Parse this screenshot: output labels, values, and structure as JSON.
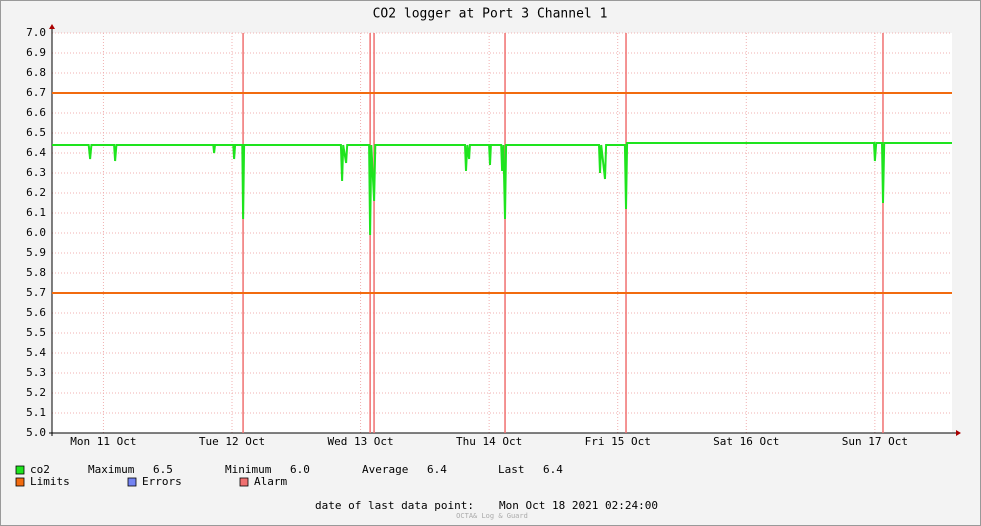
{
  "chart_data": {
    "type": "line",
    "title": "CO2 logger at Port 3 Channel 1",
    "x": [
      "2021-10-11T02:24",
      "2021-10-11T09:15",
      "2021-10-11T09:31",
      "2021-10-11T09:45",
      "2021-10-11T14:00",
      "2021-10-11T14:11",
      "2021-10-11T14:25",
      "2021-10-11T20:00",
      "2021-10-12T02:00",
      "2021-10-12T08:30",
      "2021-10-12T08:40",
      "2021-10-12T08:50",
      "2021-10-12T12:15",
      "2021-10-12T12:24",
      "2021-10-12T12:35",
      "2021-10-12T13:55",
      "2021-10-12T14:04",
      "2021-10-12T14:15",
      "2021-10-12T20:00",
      "2021-10-13T02:00",
      "2021-10-13T08:20",
      "2021-10-13T08:33",
      "2021-10-13T08:45",
      "2021-10-13T09:18",
      "2021-10-13T09:30",
      "2021-10-13T13:35",
      "2021-10-13T13:47",
      "2021-10-13T14:00",
      "2021-10-13T14:31",
      "2021-10-13T14:45",
      "2021-10-13T20:00",
      "2021-10-14T02:00",
      "2021-10-14T07:30",
      "2021-10-14T07:41",
      "2021-10-14T07:55",
      "2021-10-14T08:15",
      "2021-10-14T08:25",
      "2021-10-14T12:00",
      "2021-10-14T12:10",
      "2021-10-14T12:20",
      "2021-10-14T14:15",
      "2021-10-14T14:25",
      "2021-10-14T14:40",
      "2021-10-14T14:58",
      "2021-10-14T15:10",
      "2021-10-14T20:00",
      "2021-10-15T02:00",
      "2021-10-15T08:30",
      "2021-10-15T08:42",
      "2021-10-15T08:55",
      "2021-10-15T09:38",
      "2021-10-15T09:50",
      "2021-10-15T13:20",
      "2021-10-15T13:33",
      "2021-10-15T13:45",
      "2021-10-15T20:00",
      "2021-10-16T06:00",
      "2021-10-16T18:00",
      "2021-10-17T06:00",
      "2021-10-17T11:50",
      "2021-10-17T12:01",
      "2021-10-17T12:15",
      "2021-10-17T13:20",
      "2021-10-17T13:31",
      "2021-10-17T13:45",
      "2021-10-17T20:00",
      "2021-10-18T02:24"
    ],
    "series": [
      {
        "name": "co2",
        "color": "#1ee41e",
        "values": [
          6.44,
          6.44,
          6.37,
          6.44,
          6.44,
          6.36,
          6.44,
          6.44,
          6.44,
          6.44,
          6.4,
          6.44,
          6.44,
          6.37,
          6.44,
          6.44,
          6.07,
          6.44,
          6.44,
          6.44,
          6.44,
          6.26,
          6.44,
          6.35,
          6.44,
          6.44,
          5.99,
          6.44,
          6.16,
          6.44,
          6.44,
          6.44,
          6.44,
          6.31,
          6.44,
          6.37,
          6.44,
          6.44,
          6.34,
          6.44,
          6.44,
          6.31,
          6.44,
          6.07,
          6.44,
          6.44,
          6.44,
          6.44,
          6.3,
          6.44,
          6.27,
          6.44,
          6.44,
          6.12,
          6.45,
          6.45,
          6.45,
          6.45,
          6.45,
          6.45,
          6.36,
          6.45,
          6.45,
          6.15,
          6.45,
          6.45,
          6.45
        ]
      }
    ],
    "limits": {
      "name": "Limits",
      "color": "#f26b0f",
      "values": [
        6.7,
        5.7
      ]
    },
    "errors": {
      "name": "Errors",
      "color": "#7383f2"
    },
    "alarm": {
      "name": "Alarm",
      "color": "#f07070",
      "x": [
        "2021-10-12T14:04",
        "2021-10-13T13:47",
        "2021-10-13T14:31",
        "2021-10-14T14:58",
        "2021-10-15T13:33",
        "2021-10-17T13:31"
      ]
    },
    "stats": [
      {
        "label": "Maximum",
        "value": 6.5
      },
      {
        "label": "Minimum",
        "value": {
          "value": 6.0,
          "label": "6.0"
        }
      },
      {
        "label": "Average",
        "value": 6.4
      },
      {
        "label": "Last",
        "value": 6.4
      }
    ],
    "ylim": [
      5,
      7
    ],
    "yticks": [
      {
        "value": 5,
        "label": "5.0"
      },
      5.1,
      5.2,
      5.3,
      5.4,
      5.5,
      5.6,
      5.7,
      5.8,
      5.9,
      {
        "value": 6,
        "label": "6.0"
      },
      6.1,
      6.2,
      6.3,
      6.4,
      6.5,
      6.6,
      6.7,
      6.8,
      6.9,
      {
        "value": 7,
        "label": "7.0"
      }
    ],
    "xlim": [
      "2021-10-11T02:24",
      "2021-10-18T02:24"
    ],
    "xticks": [
      {
        "value": "2021-10-11T12:00",
        "label": "Mon 11 Oct"
      },
      {
        "value": "2021-10-12T12:00",
        "label": "Tue 12 Oct"
      },
      {
        "value": "2021-10-13T12:00",
        "label": "Wed 13 Oct"
      },
      {
        "value": "2021-10-14T12:00",
        "label": "Thu 14 Oct"
      },
      {
        "value": "2021-10-15T12:00",
        "label": "Fri 15 Oct"
      },
      {
        "value": "2021-10-16T12:00",
        "label": "Sat 16 Oct"
      },
      {
        "value": "2021-10-17T12:00",
        "label": "Sun 17 Oct"
      }
    ],
    "grid": true,
    "footer": {
      "label": "date of last data point:",
      "value": "Mon Oct 18 2021 02:24:00"
    },
    "watermark": "OCTA& Log & Guard"
  }
}
